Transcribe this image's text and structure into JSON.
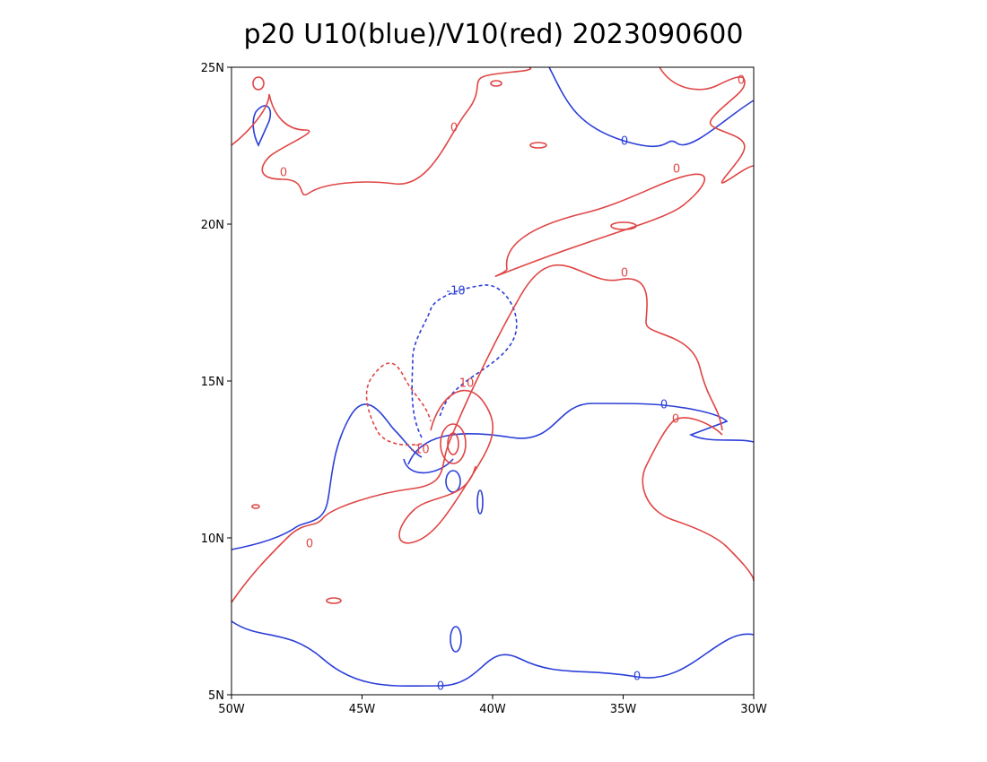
{
  "chart_data": {
    "type": "contour",
    "title": "p20 U10(blue)/V10(red) 2023090600",
    "series": [
      {
        "name": "U10",
        "color": "#2b3fd8",
        "levels": [
          -10,
          0
        ]
      },
      {
        "name": "V10",
        "color": "#e04545",
        "levels": [
          -10,
          0,
          10
        ]
      }
    ],
    "xlim": [
      -50,
      -30
    ],
    "xticks": [
      {
        "value": -50,
        "label": "50W"
      },
      {
        "value": -45,
        "label": "45W"
      },
      {
        "value": -40,
        "label": "40W"
      },
      {
        "value": -35,
        "label": "35W"
      },
      {
        "value": -30,
        "label": "30W"
      }
    ],
    "ylim": [
      5,
      25
    ],
    "yticks": [
      {
        "value": 5,
        "label": "5N"
      },
      {
        "value": 10,
        "label": "10N"
      },
      {
        "value": 15,
        "label": "15N"
      },
      {
        "value": 20,
        "label": "20N"
      },
      {
        "value": 25,
        "label": "25N"
      }
    ]
  }
}
